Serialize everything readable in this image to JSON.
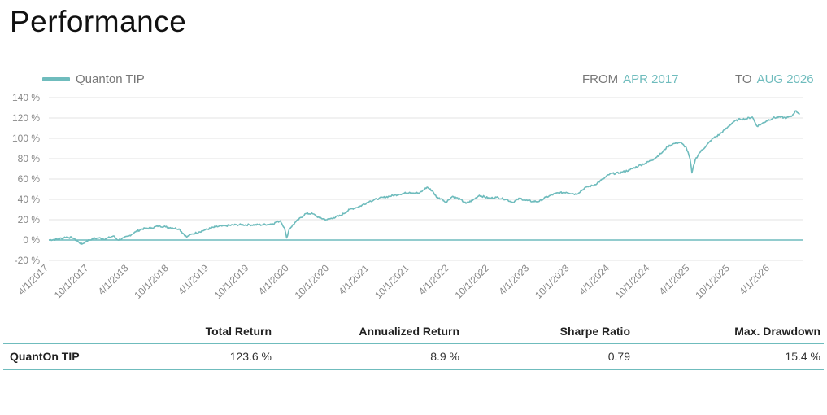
{
  "page": {
    "title": "Performance"
  },
  "legend": {
    "series_name": "Quanton TIP"
  },
  "range": {
    "from_label": "FROM",
    "from_value": "APR 2017",
    "to_label": "TO",
    "to_value": "AUG 2026"
  },
  "colors": {
    "line": "#6fbcbd",
    "grid": "#e3e3e3",
    "zero_line": "#6fbcbd",
    "accent": "#6fbcbd"
  },
  "chart_data": {
    "type": "line",
    "title": "",
    "xlabel": "",
    "ylabel": "",
    "ylim": [
      -20,
      140
    ],
    "yticks": [
      -20,
      0,
      20,
      40,
      60,
      80,
      100,
      120,
      140
    ],
    "ytick_labels": [
      "-20 %",
      "0 %",
      "20 %",
      "40 %",
      "60 %",
      "80 %",
      "100 %",
      "120 %",
      "140 %"
    ],
    "x_tick_labels": [
      "4/1/2017",
      "10/1/2017",
      "4/1/2018",
      "10/1/2018",
      "4/1/2019",
      "10/1/2019",
      "4/1/2020",
      "10/1/2020",
      "4/1/2021",
      "10/1/2021",
      "4/1/2022",
      "10/1/2022",
      "4/1/2023",
      "10/1/2023",
      "4/1/2024",
      "10/1/2024",
      "4/1/2025",
      "10/1/2025",
      "4/1/2026"
    ],
    "x_tick_dates": [
      "2017-04-01",
      "2017-10-01",
      "2018-04-01",
      "2018-10-01",
      "2019-04-01",
      "2019-10-01",
      "2020-04-01",
      "2020-10-01",
      "2021-04-01",
      "2021-10-01",
      "2022-04-01",
      "2022-10-01",
      "2023-04-01",
      "2023-10-01",
      "2024-04-01",
      "2024-10-01",
      "2025-04-01",
      "2025-10-01",
      "2026-04-01"
    ],
    "xlim": [
      "2017-04-01",
      "2026-08-31"
    ],
    "grid": true,
    "series": [
      {
        "name": "Quanton TIP",
        "points": [
          [
            "2017-04-01",
            0
          ],
          [
            "2017-05-15",
            1
          ],
          [
            "2017-06-20",
            3
          ],
          [
            "2017-07-20",
            2
          ],
          [
            "2017-08-15",
            -2
          ],
          [
            "2017-08-30",
            -4
          ],
          [
            "2017-09-20",
            -1
          ],
          [
            "2017-10-15",
            1
          ],
          [
            "2017-11-15",
            2
          ],
          [
            "2017-12-15",
            1
          ],
          [
            "2018-01-20",
            4
          ],
          [
            "2018-02-10",
            0
          ],
          [
            "2018-03-10",
            2
          ],
          [
            "2018-04-01",
            4
          ],
          [
            "2018-05-01",
            8
          ],
          [
            "2018-06-01",
            11
          ],
          [
            "2018-07-15",
            12
          ],
          [
            "2018-08-15",
            14
          ],
          [
            "2018-09-15",
            13
          ],
          [
            "2018-10-15",
            12
          ],
          [
            "2018-11-15",
            11
          ],
          [
            "2018-12-20",
            3
          ],
          [
            "2019-01-15",
            6
          ],
          [
            "2019-02-15",
            8
          ],
          [
            "2019-03-15",
            10
          ],
          [
            "2019-05-01",
            13
          ],
          [
            "2019-06-15",
            14
          ],
          [
            "2019-08-01",
            15
          ],
          [
            "2019-10-01",
            15
          ],
          [
            "2019-12-01",
            15
          ],
          [
            "2020-01-15",
            16
          ],
          [
            "2020-02-20",
            19
          ],
          [
            "2020-03-10",
            12
          ],
          [
            "2020-03-20",
            2
          ],
          [
            "2020-04-01",
            11
          ],
          [
            "2020-05-01",
            18
          ],
          [
            "2020-06-15",
            26
          ],
          [
            "2020-07-15",
            26
          ],
          [
            "2020-08-15",
            22
          ],
          [
            "2020-09-20",
            20
          ],
          [
            "2020-10-20",
            22
          ],
          [
            "2020-11-20",
            24
          ],
          [
            "2021-01-01",
            30
          ],
          [
            "2021-02-15",
            33
          ],
          [
            "2021-04-01",
            38
          ],
          [
            "2021-05-15",
            41
          ],
          [
            "2021-07-01",
            43
          ],
          [
            "2021-08-15",
            45
          ],
          [
            "2021-10-01",
            47
          ],
          [
            "2021-11-15",
            46
          ],
          [
            "2021-12-20",
            52
          ],
          [
            "2022-01-15",
            48
          ],
          [
            "2022-02-01",
            42
          ],
          [
            "2022-03-01",
            40
          ],
          [
            "2022-03-15",
            37
          ],
          [
            "2022-04-15",
            43
          ],
          [
            "2022-05-20",
            40
          ],
          [
            "2022-06-15",
            36
          ],
          [
            "2022-07-15",
            39
          ],
          [
            "2022-08-15",
            44
          ],
          [
            "2022-09-30",
            41
          ],
          [
            "2022-11-01",
            42
          ],
          [
            "2022-12-15",
            40
          ],
          [
            "2023-01-15",
            37
          ],
          [
            "2023-02-15",
            41
          ],
          [
            "2023-03-15",
            39
          ],
          [
            "2023-04-15",
            38
          ],
          [
            "2023-05-15",
            38
          ],
          [
            "2023-06-15",
            42
          ],
          [
            "2023-07-31",
            46
          ],
          [
            "2023-09-15",
            47
          ],
          [
            "2023-10-31",
            45
          ],
          [
            "2023-12-15",
            52
          ],
          [
            "2024-01-20",
            54
          ],
          [
            "2024-03-01",
            60
          ],
          [
            "2024-04-01",
            65
          ],
          [
            "2024-05-15",
            66
          ],
          [
            "2024-07-01",
            69
          ],
          [
            "2024-08-10",
            73
          ],
          [
            "2024-09-15",
            76
          ],
          [
            "2024-10-20",
            80
          ],
          [
            "2024-11-20",
            85
          ],
          [
            "2024-12-20",
            92
          ],
          [
            "2025-01-20",
            95
          ],
          [
            "2025-02-15",
            96
          ],
          [
            "2025-03-15",
            91
          ],
          [
            "2025-04-01",
            80
          ],
          [
            "2025-04-10",
            66
          ],
          [
            "2025-04-25",
            79
          ],
          [
            "2025-05-15",
            86
          ],
          [
            "2025-06-15",
            93
          ],
          [
            "2025-07-15",
            100
          ],
          [
            "2025-08-15",
            104
          ],
          [
            "2025-09-15",
            110
          ],
          [
            "2025-10-15",
            116
          ],
          [
            "2025-11-15",
            119
          ],
          [
            "2025-12-10",
            119
          ],
          [
            "2026-01-10",
            121
          ],
          [
            "2026-01-31",
            112
          ],
          [
            "2026-02-20",
            114
          ],
          [
            "2026-03-15",
            117
          ],
          [
            "2026-04-15",
            120
          ],
          [
            "2026-05-15",
            121
          ],
          [
            "2026-06-15",
            120
          ],
          [
            "2026-07-10",
            122
          ],
          [
            "2026-07-25",
            127
          ],
          [
            "2026-08-15",
            124
          ]
        ]
      }
    ]
  },
  "stats": {
    "headers": [
      "",
      "Total Return",
      "Annualized Return",
      "Sharpe Ratio",
      "Max. Drawdown"
    ],
    "rows": [
      [
        "QuantOn TIP",
        "123.6 %",
        "8.9 %",
        "0.79",
        "15.4 %"
      ]
    ]
  }
}
